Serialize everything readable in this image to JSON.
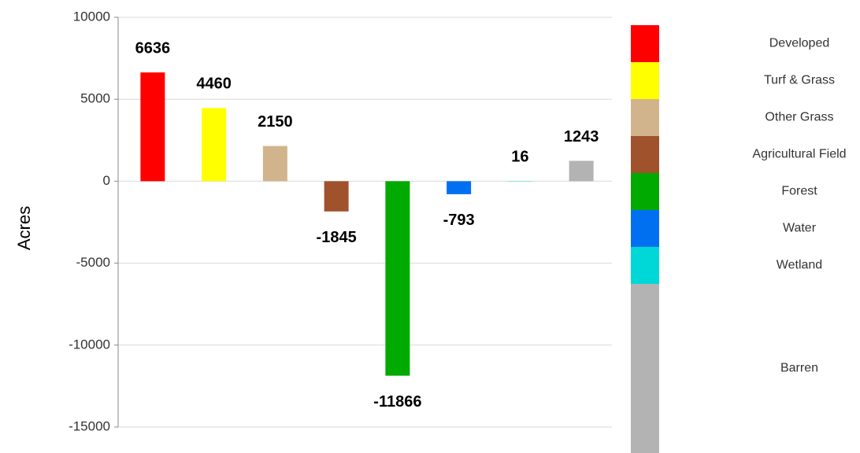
{
  "chart_data": {
    "type": "bar",
    "y_label": "Acres",
    "categories": [
      "Developed",
      "Turf & Grass",
      "Other Grass",
      "Agricultural Field",
      "Forest",
      "Water",
      "Wetland",
      "Barren"
    ],
    "values": [
      6636,
      4460,
      2150,
      -1845,
      -11866,
      -793,
      16,
      1243
    ],
    "colors": [
      "#ff0000",
      "#ffff00",
      "#d2b48c",
      "#a0522d",
      "#00aa00",
      "#0070f0",
      "#00d8d8",
      "#b3b3b3"
    ],
    "ylim": [
      -15000,
      10000
    ],
    "yticks": [
      -15000,
      -10000,
      -5000,
      0,
      5000,
      10000
    ],
    "grid": true,
    "legend": "right"
  }
}
